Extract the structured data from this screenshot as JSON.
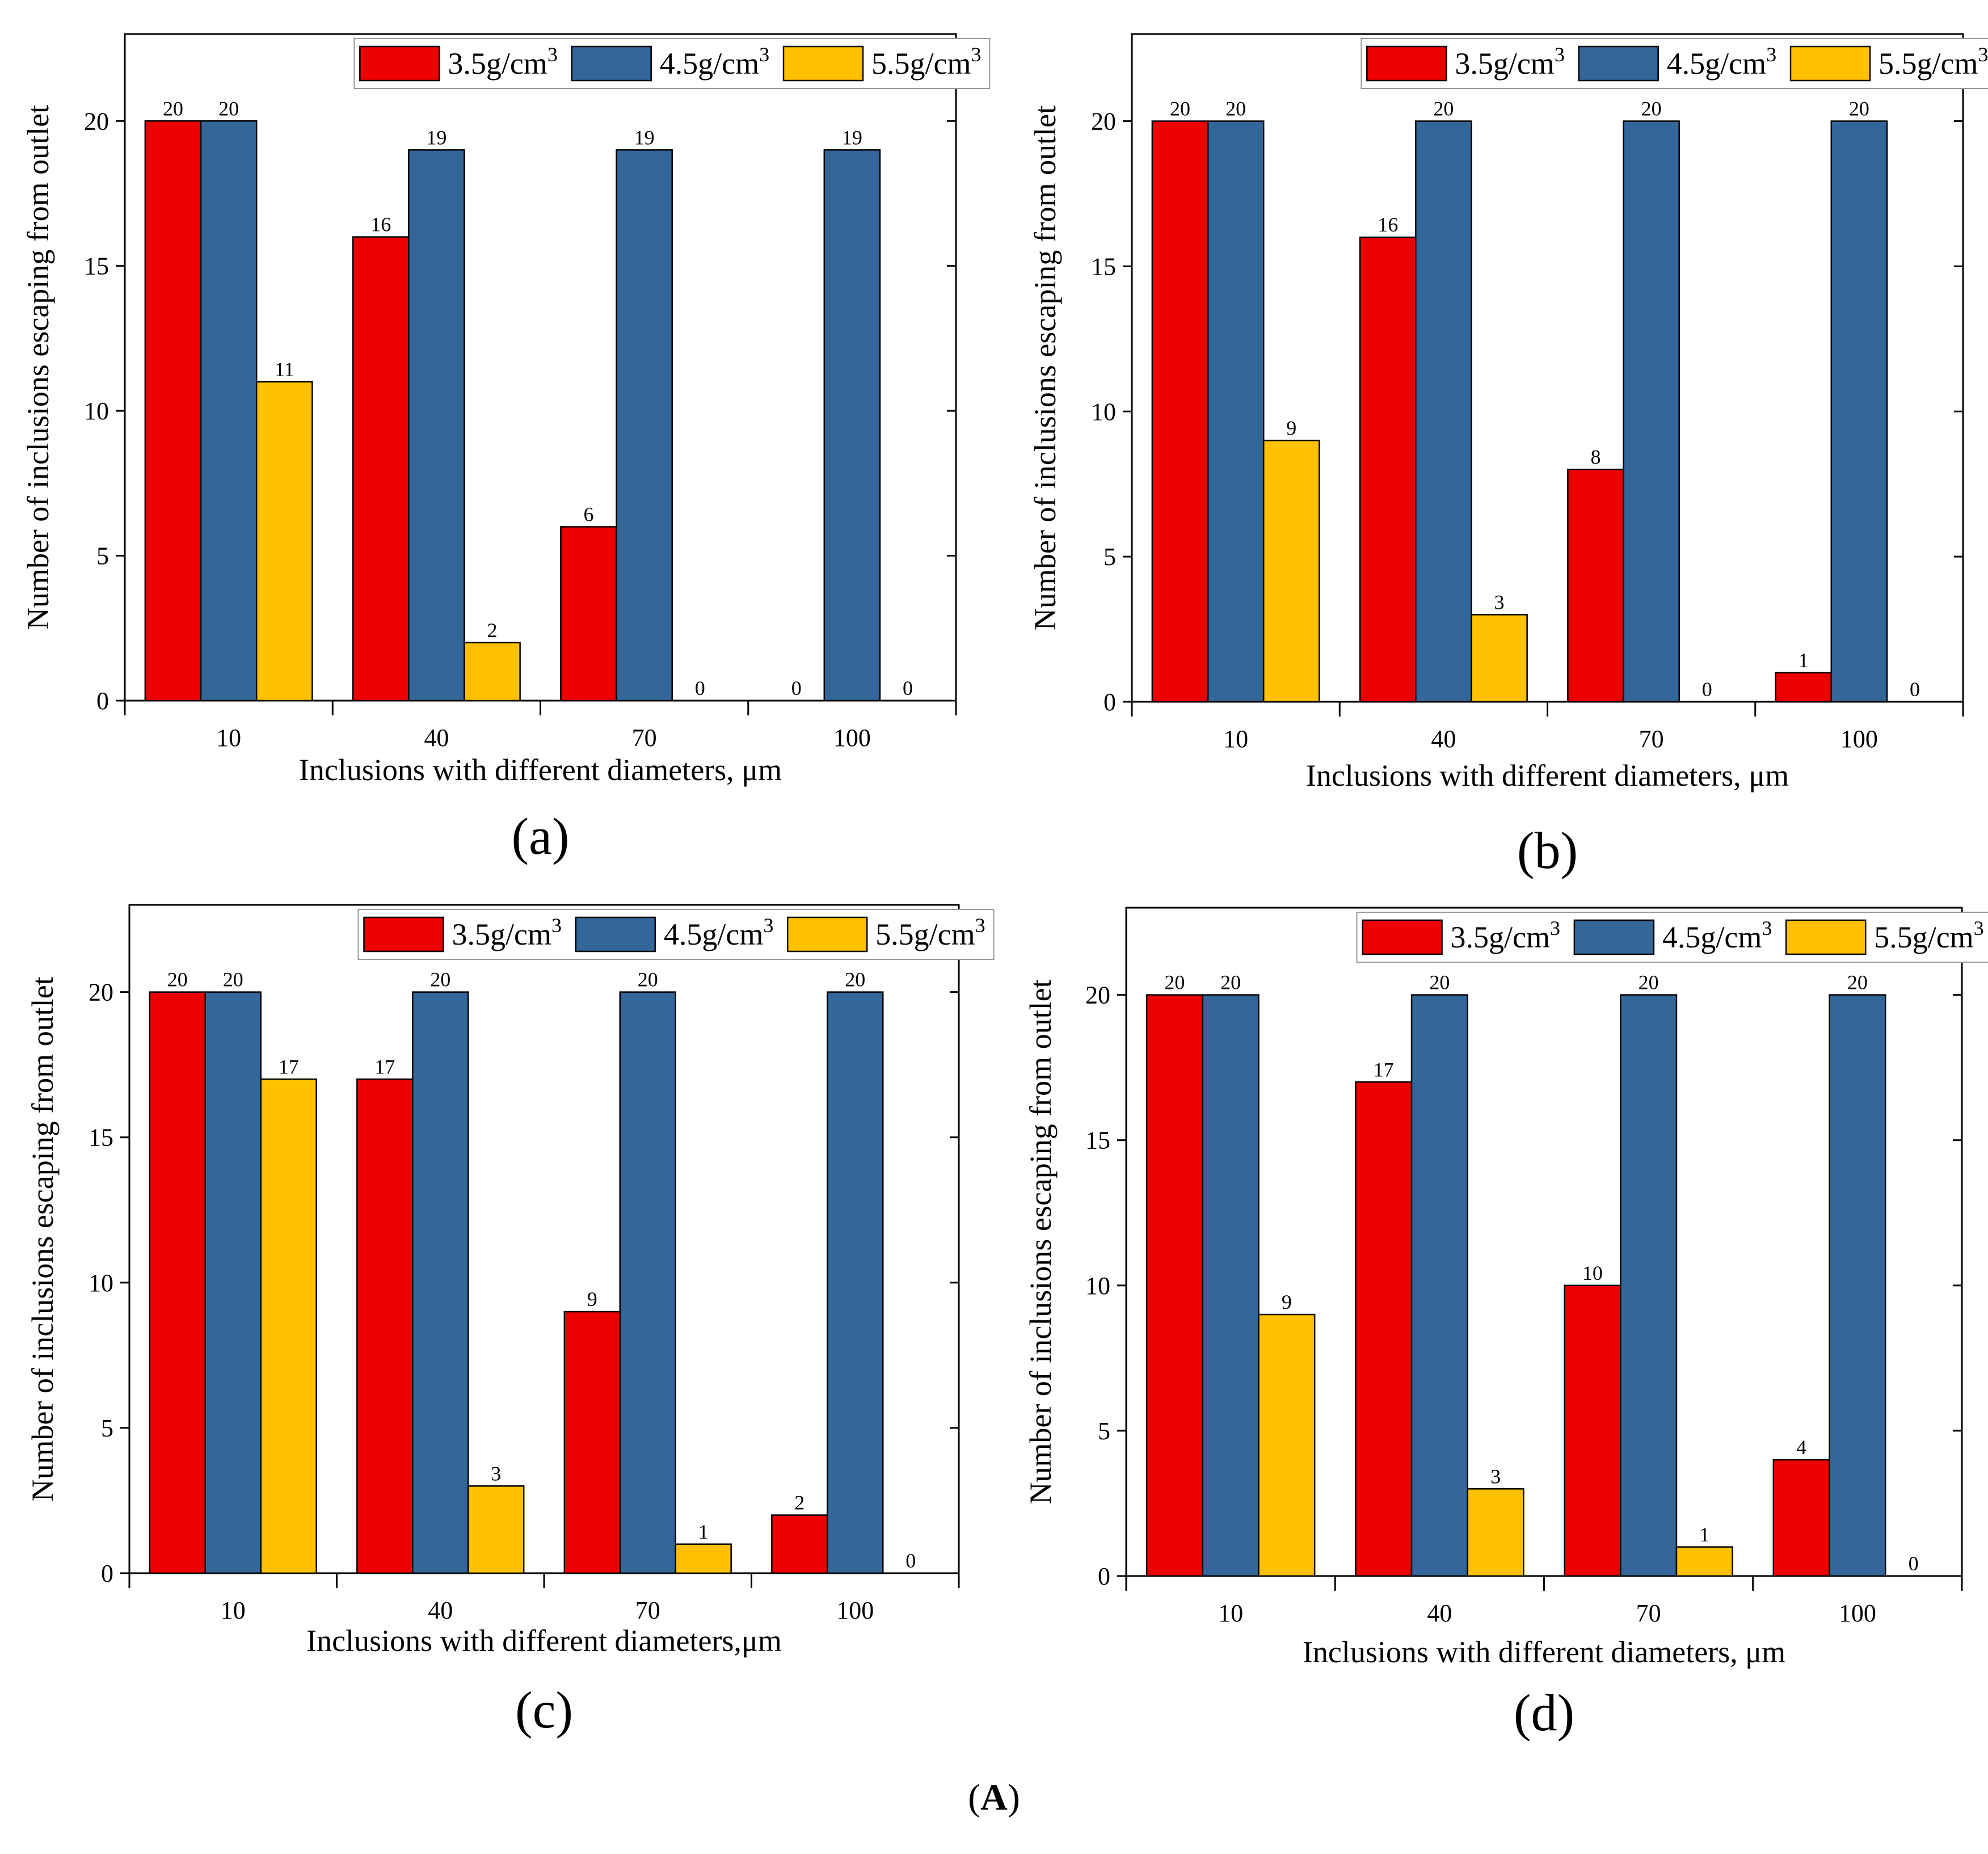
{
  "figure_label": "(A)",
  "chart_data": [
    {
      "type": "bar",
      "panel": "(a)",
      "categories": [
        "10",
        "40",
        "70",
        "100"
      ],
      "series": [
        {
          "name": "3.5g/cm3",
          "legend_base": "3.5g/cm",
          "legend_sup": "3",
          "color": "#EE0000",
          "values": [
            20,
            16,
            6,
            0
          ]
        },
        {
          "name": "4.5g/cm3",
          "legend_base": "4.5g/cm",
          "legend_sup": "3",
          "color": "#336699",
          "values": [
            20,
            19,
            19,
            19
          ]
        },
        {
          "name": "5.5g/cm3",
          "legend_base": "5.5g/cm",
          "legend_sup": "3",
          "color": "#FFC000",
          "values": [
            11,
            2,
            0,
            0
          ]
        }
      ],
      "xlabel": "Inclusions with different diameters, μm",
      "ylabel": "Number of inclusions escaping from outlet",
      "ylim": [
        0,
        23
      ],
      "yticks": [
        0,
        5,
        10,
        15,
        20
      ],
      "legend": "top"
    },
    {
      "type": "bar",
      "panel": "(b)",
      "categories": [
        "10",
        "40",
        "70",
        "100"
      ],
      "series": [
        {
          "name": "3.5g/cm3",
          "legend_base": "3.5g/cm",
          "legend_sup": "3",
          "color": "#EE0000",
          "values": [
            20,
            16,
            8,
            1
          ]
        },
        {
          "name": "4.5g/cm3",
          "legend_base": "4.5g/cm",
          "legend_sup": "3",
          "color": "#336699",
          "values": [
            20,
            20,
            20,
            20
          ]
        },
        {
          "name": "5.5g/cm3",
          "legend_base": "5.5g/cm",
          "legend_sup": "3",
          "color": "#FFC000",
          "values": [
            9,
            3,
            0,
            0
          ]
        }
      ],
      "xlabel": "Inclusions with different diameters, μm",
      "ylabel": "Number of inclusions escaping from outlet",
      "ylim": [
        0,
        23
      ],
      "yticks": [
        0,
        5,
        10,
        15,
        20
      ],
      "legend": "top"
    },
    {
      "type": "bar",
      "panel": "(c)",
      "categories": [
        "10",
        "40",
        "70",
        "100"
      ],
      "series": [
        {
          "name": "3.5g/cm3",
          "legend_base": "3.5g/cm",
          "legend_sup": "3",
          "color": "#EE0000",
          "values": [
            20,
            17,
            9,
            2
          ]
        },
        {
          "name": "4.5g/cm3",
          "legend_base": "4.5g/cm",
          "legend_sup": "3",
          "color": "#336699",
          "values": [
            20,
            20,
            20,
            20
          ]
        },
        {
          "name": "5.5g/cm3",
          "legend_base": "5.5g/cm",
          "legend_sup": "3",
          "color": "#FFC000",
          "values": [
            17,
            3,
            1,
            0
          ]
        }
      ],
      "xlabel": "Inclusions with different diameters,μm",
      "ylabel": "Number of inclusions escaping from outlet",
      "ylim": [
        0,
        23
      ],
      "yticks": [
        0,
        5,
        10,
        15,
        20
      ],
      "legend": "top"
    },
    {
      "type": "bar",
      "panel": "(d)",
      "categories": [
        "10",
        "40",
        "70",
        "100"
      ],
      "series": [
        {
          "name": "3.5g/cm3",
          "legend_base": "3.5g/cm",
          "legend_sup": "3",
          "color": "#EE0000",
          "values": [
            20,
            17,
            10,
            4
          ]
        },
        {
          "name": "4.5g/cm3",
          "legend_base": "4.5g/cm",
          "legend_sup": "3",
          "color": "#336699",
          "values": [
            20,
            20,
            20,
            20
          ]
        },
        {
          "name": "5.5g/cm3",
          "legend_base": "5.5g/cm",
          "legend_sup": "3",
          "color": "#FFC000",
          "values": [
            9,
            3,
            1,
            0
          ]
        }
      ],
      "xlabel": "Inclusions with different diameters, μm",
      "ylabel": "Number of inclusions escaping from outlet",
      "ylim": [
        0,
        23
      ],
      "yticks": [
        0,
        5,
        10,
        15,
        20
      ],
      "legend": "top"
    }
  ]
}
